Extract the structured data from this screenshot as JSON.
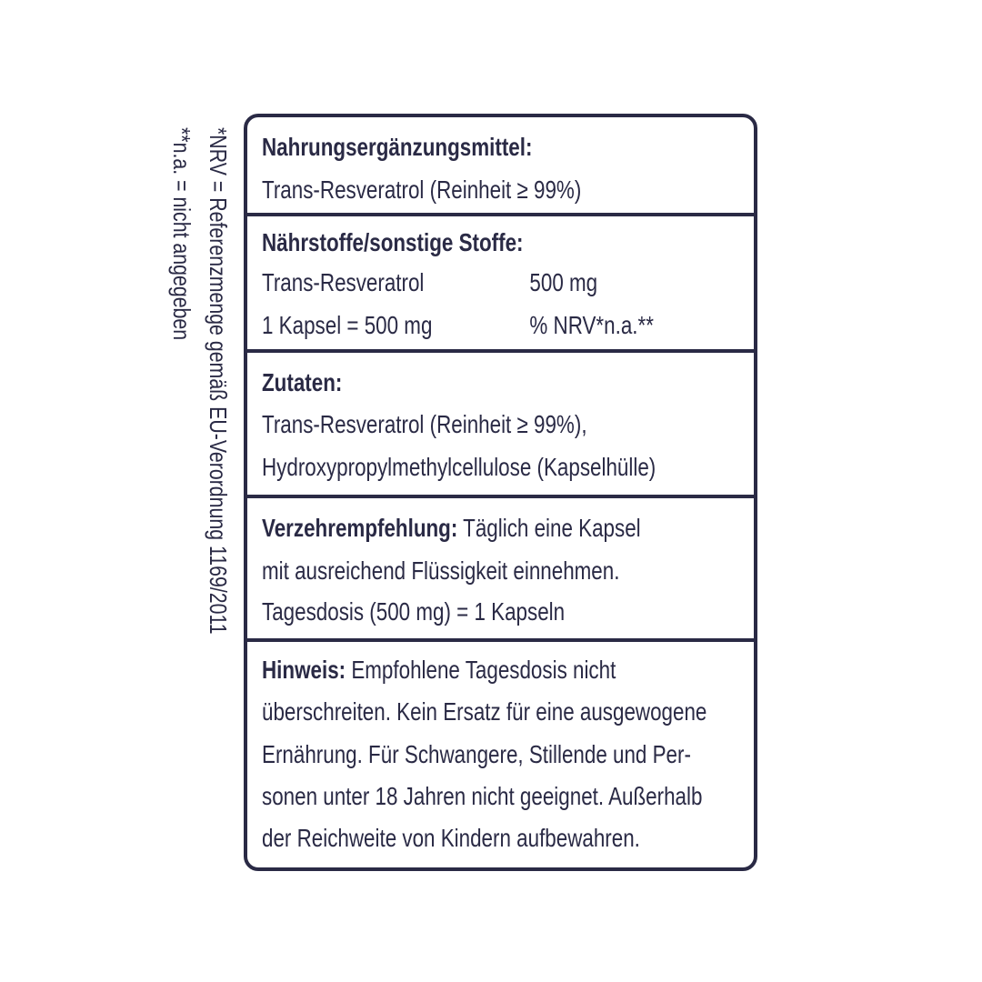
{
  "sidenote": {
    "nrv": "*NRV = Referenzmenge gemäß EU-Verordnung 1169/2011",
    "na": "**n.a. = nicht angegeben"
  },
  "sections": [
    {
      "title": "Nahrungsergänzungsmittel:",
      "lines": [
        "Trans-Resveratrol (Reinheit ≥ 99%)"
      ]
    },
    {
      "title": "Nährstoffe/sonstige Stoffe:",
      "rows": [
        {
          "name": "Trans-Resveratrol",
          "value": "500 mg"
        },
        {
          "name": "1 Kapsel = 500 mg",
          "value": "% NRV*n.a.**"
        }
      ]
    },
    {
      "title": "Zutaten:",
      "lines": [
        "Trans-Resveratrol (Reinheit ≥ 99%),",
        "Hydroxypropylmethylcellulose (Kapselhülle)"
      ]
    },
    {
      "title": "Verzehrempfehlung:",
      "lines": [
        " Täglich eine Kapsel",
        "mit ausreichend Flüssigkeit einnehmen.",
        "Tagesdosis (500 mg) = 1 Kapseln"
      ]
    },
    {
      "title": "Hinweis:",
      "lines": [
        " Empfohlene Tagesdosis nicht",
        "überschreiten. Kein Ersatz für eine ausgewogene",
        "Ernährung. Für Schwangere, Stillende und Per-",
        "sonen unter 18 Jahren nicht geeignet. Außerhalb",
        "der Reichweite von Kindern aufbewahren."
      ]
    }
  ]
}
